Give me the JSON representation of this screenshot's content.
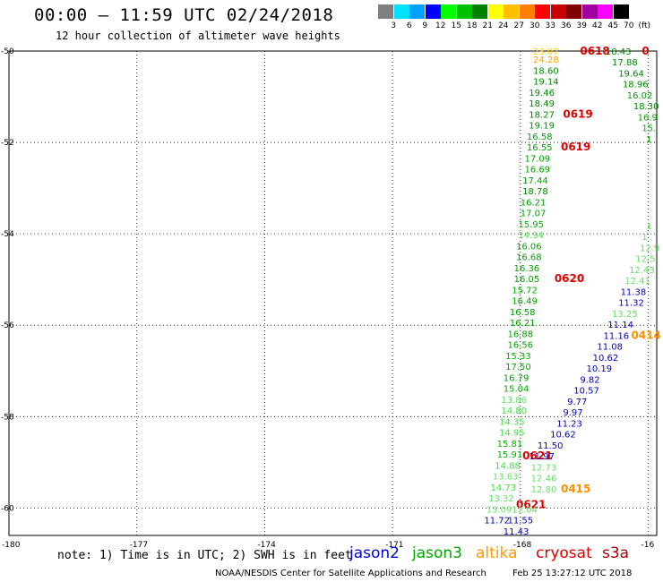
{
  "title": "00:00 – 11:59 UTC 02/24/2018",
  "subtitle": "12 hour collection of altimeter wave heights",
  "legend": {
    "labels": [
      "3",
      "6",
      "9",
      "12",
      "15",
      "18",
      "21",
      "24",
      "27",
      "30",
      "33",
      "36",
      "39",
      "42",
      "45",
      "70",
      "(ft)"
    ],
    "colors": [
      "#808080",
      "#00e0ff",
      "#00a0ff",
      "#0000ff",
      "#00ff00",
      "#00c000",
      "#008000",
      "#ffff00",
      "#ffc000",
      "#ff8000",
      "#ff0000",
      "#c80000",
      "#800000",
      "#a000a0",
      "#ff00ff",
      "#000000"
    ]
  },
  "lat_labels": [
    {
      "lat": -50,
      "label": "-50"
    },
    {
      "lat": -52,
      "label": "-52"
    },
    {
      "lat": -54,
      "label": "-54"
    },
    {
      "lat": -56,
      "label": "-56"
    },
    {
      "lat": -58,
      "label": "-58"
    },
    {
      "lat": -60,
      "label": "-60"
    }
  ],
  "lon_labels": [
    {
      "lon": -180,
      "label": "-180"
    },
    {
      "lon": -177,
      "label": "-177"
    },
    {
      "lon": -174,
      "label": "-174"
    },
    {
      "lon": -171,
      "label": "-171"
    },
    {
      "lon": -168,
      "label": "-168"
    },
    {
      "lon": -165,
      "label": "-16"
    }
  ],
  "observations": [
    {
      "lon": -167.7,
      "lat": -50.0,
      "text": "23.07",
      "color": "#ffd000"
    },
    {
      "lon": -167.7,
      "lat": -50.18,
      "text": "24.28",
      "color": "#ffa000"
    },
    {
      "lon": -166.6,
      "lat": -50.0,
      "text": "0618",
      "color": "#e00000",
      "bold": true
    },
    {
      "lon": -167.7,
      "lat": -50.42,
      "text": "18.60",
      "color": "#008800"
    },
    {
      "lon": -167.7,
      "lat": -50.66,
      "text": "19.14",
      "color": "#008800"
    },
    {
      "lon": -167.8,
      "lat": -50.9,
      "text": "19.46",
      "color": "#008800"
    },
    {
      "lon": -167.8,
      "lat": -51.14,
      "text": "18.49",
      "color": "#008800"
    },
    {
      "lon": -167.8,
      "lat": -51.38,
      "text": "18.27",
      "color": "#008800"
    },
    {
      "lon": -167.8,
      "lat": -51.62,
      "text": "19.19",
      "color": "#008800"
    },
    {
      "lon": -167.85,
      "lat": -51.86,
      "text": "16.58",
      "color": "#00a000"
    },
    {
      "lon": -167.85,
      "lat": -52.1,
      "text": "16.55",
      "color": "#00a000"
    },
    {
      "lon": -167.0,
      "lat": -51.38,
      "text": "0619",
      "color": "#e00000",
      "bold": true
    },
    {
      "lon": -167.05,
      "lat": -52.1,
      "text": "0619",
      "color": "#e00000",
      "bold": true
    },
    {
      "lon": -167.9,
      "lat": -52.34,
      "text": "17.09",
      "color": "#00a000"
    },
    {
      "lon": -167.9,
      "lat": -52.58,
      "text": "16.69",
      "color": "#00a000"
    },
    {
      "lon": -167.95,
      "lat": -52.82,
      "text": "17.44",
      "color": "#00a000"
    },
    {
      "lon": -167.95,
      "lat": -53.06,
      "text": "18.78",
      "color": "#008800"
    },
    {
      "lon": -168.0,
      "lat": -53.3,
      "text": "16.21",
      "color": "#00a000"
    },
    {
      "lon": -168.0,
      "lat": -53.54,
      "text": "17.07",
      "color": "#00a000"
    },
    {
      "lon": -168.05,
      "lat": -53.78,
      "text": "15.95",
      "color": "#00b000"
    },
    {
      "lon": -168.05,
      "lat": -54.02,
      "text": "14.94",
      "color": "#44e044"
    },
    {
      "lon": -168.1,
      "lat": -54.26,
      "text": "16.06",
      "color": "#00a000"
    },
    {
      "lon": -168.1,
      "lat": -54.5,
      "text": "16.68",
      "color": "#00a000"
    },
    {
      "lon": -168.15,
      "lat": -54.74,
      "text": "16.36",
      "color": "#00a000"
    },
    {
      "lon": -168.15,
      "lat": -54.98,
      "text": "16.05",
      "color": "#00a000"
    },
    {
      "lon": -167.2,
      "lat": -54.98,
      "text": "0620",
      "color": "#e00000",
      "bold": true
    },
    {
      "lon": -168.2,
      "lat": -55.22,
      "text": "15.72",
      "color": "#00b000"
    },
    {
      "lon": -168.2,
      "lat": -55.46,
      "text": "16.49",
      "color": "#00a000"
    },
    {
      "lon": -168.25,
      "lat": -55.7,
      "text": "16.58",
      "color": "#00a000"
    },
    {
      "lon": -168.25,
      "lat": -55.94,
      "text": "16.21",
      "color": "#00a000"
    },
    {
      "lon": -168.3,
      "lat": -56.18,
      "text": "16.88",
      "color": "#00a000"
    },
    {
      "lon": -168.3,
      "lat": -56.42,
      "text": "16.56",
      "color": "#00a000"
    },
    {
      "lon": -168.35,
      "lat": -56.66,
      "text": "15.33",
      "color": "#00b000"
    },
    {
      "lon": -168.35,
      "lat": -56.9,
      "text": "17.50",
      "color": "#00a000"
    },
    {
      "lon": -168.4,
      "lat": -57.14,
      "text": "16.79",
      "color": "#00a000"
    },
    {
      "lon": -168.4,
      "lat": -57.38,
      "text": "15.04",
      "color": "#00b000"
    },
    {
      "lon": -168.45,
      "lat": -57.62,
      "text": "13.86",
      "color": "#66e066"
    },
    {
      "lon": -168.45,
      "lat": -57.86,
      "text": "14.80",
      "color": "#44e044"
    },
    {
      "lon": -168.5,
      "lat": -58.1,
      "text": "14.35",
      "color": "#44e044"
    },
    {
      "lon": -168.5,
      "lat": -58.34,
      "text": "14.95",
      "color": "#44e044"
    },
    {
      "lon": -168.55,
      "lat": -58.58,
      "text": "15.81",
      "color": "#00b000"
    },
    {
      "lon": -168.55,
      "lat": -58.82,
      "text": "15.91",
      "color": "#00b000"
    },
    {
      "lon": -168.6,
      "lat": -59.06,
      "text": "14.88",
      "color": "#44e044"
    },
    {
      "lon": -168.65,
      "lat": -59.3,
      "text": "13.63",
      "color": "#66e066"
    },
    {
      "lon": -168.7,
      "lat": -59.54,
      "text": "14.73",
      "color": "#44e044"
    },
    {
      "lon": -168.75,
      "lat": -59.78,
      "text": "13.32",
      "color": "#66e066"
    },
    {
      "lon": -168.8,
      "lat": -60.02,
      "text": "13.09",
      "color": "#66e066"
    },
    {
      "lon": -168.85,
      "lat": -60.26,
      "text": "11.72",
      "color": "#0000c0"
    },
    {
      "lon": -168.3,
      "lat": -60.26,
      "text": "11.55",
      "color": "#0000c0"
    },
    {
      "lon": -168.4,
      "lat": -60.5,
      "text": "11.43",
      "color": "#0000c0"
    },
    {
      "lon": -167.95,
      "lat": -58.86,
      "text": "0621",
      "color": "#e00000",
      "bold": true
    },
    {
      "lon": -168.1,
      "lat": -59.92,
      "text": "0621",
      "color": "#e00000",
      "bold": true
    },
    {
      "lon": -167.8,
      "lat": -58.86,
      "text": "11.97",
      "color": "#0000c0"
    },
    {
      "lon": -167.75,
      "lat": -59.1,
      "text": "12.73",
      "color": "#66e066"
    },
    {
      "lon": -167.75,
      "lat": -59.34,
      "text": "12.46",
      "color": "#66e066"
    },
    {
      "lon": -167.75,
      "lat": -59.58,
      "text": "12.80",
      "color": "#66e066"
    },
    {
      "lon": -168.2,
      "lat": -60.02,
      "text": "12.04",
      "color": "#66e066"
    },
    {
      "lon": -167.05,
      "lat": -59.58,
      "text": "0415",
      "color": "#ff9000",
      "bold": true
    },
    {
      "lon": -167.6,
      "lat": -58.62,
      "text": "11.50",
      "color": "#0000c0"
    },
    {
      "lon": -167.3,
      "lat": -58.38,
      "text": "10.62",
      "color": "#0000c0"
    },
    {
      "lon": -167.15,
      "lat": -58.14,
      "text": "11.23",
      "color": "#0000c0"
    },
    {
      "lon": -167.0,
      "lat": -57.9,
      "text": "9.97",
      "color": "#0000c0"
    },
    {
      "lon": -166.9,
      "lat": -57.66,
      "text": "9.77",
      "color": "#0000c0"
    },
    {
      "lon": -166.75,
      "lat": -57.42,
      "text": "10.57",
      "color": "#0000c0"
    },
    {
      "lon": -166.6,
      "lat": -57.18,
      "text": "9.82",
      "color": "#0000c0"
    },
    {
      "lon": -166.45,
      "lat": -56.94,
      "text": "10.19",
      "color": "#0000c0"
    },
    {
      "lon": -166.3,
      "lat": -56.7,
      "text": "10.62",
      "color": "#0000c0"
    },
    {
      "lon": -166.2,
      "lat": -56.46,
      "text": "11.08",
      "color": "#0000c0"
    },
    {
      "lon": -166.05,
      "lat": -56.22,
      "text": "11.16",
      "color": "#0000c0"
    },
    {
      "lon": -165.95,
      "lat": -55.98,
      "text": "11.14",
      "color": "#0000c0"
    },
    {
      "lon": -165.85,
      "lat": -55.74,
      "text": "13.25",
      "color": "#66e066"
    },
    {
      "lon": -165.7,
      "lat": -55.5,
      "text": "11.32",
      "color": "#0000c0"
    },
    {
      "lon": -165.65,
      "lat": -55.26,
      "text": "11.38",
      "color": "#0000c0"
    },
    {
      "lon": -165.55,
      "lat": -55.02,
      "text": "12.41",
      "color": "#66e066"
    },
    {
      "lon": -165.4,
      "lat": -56.22,
      "text": "0414",
      "color": "#ff9000",
      "bold": true
    },
    {
      "lon": -165.45,
      "lat": -54.78,
      "text": "12.43",
      "color": "#66e066"
    },
    {
      "lon": -165.3,
      "lat": -54.54,
      "text": "12.5",
      "color": "#66e066"
    },
    {
      "lon": -165.2,
      "lat": -54.3,
      "text": "12.9",
      "color": "#66e066"
    },
    {
      "lon": -165.15,
      "lat": -54.06,
      "text": "1",
      "color": "#66e066"
    },
    {
      "lon": -165.05,
      "lat": -53.82,
      "text": "1",
      "color": "#66e066"
    },
    {
      "lon": -166.0,
      "lat": -50.0,
      "text": "18.43",
      "color": "#008800"
    },
    {
      "lon": -165.85,
      "lat": -50.24,
      "text": "17.88",
      "color": "#008800"
    },
    {
      "lon": -165.7,
      "lat": -50.48,
      "text": "19.64",
      "color": "#008800"
    },
    {
      "lon": -165.6,
      "lat": -50.72,
      "text": "18.96",
      "color": "#008800"
    },
    {
      "lon": -165.5,
      "lat": -50.96,
      "text": "16.02",
      "color": "#00a000"
    },
    {
      "lon": -165.35,
      "lat": -51.2,
      "text": "18.30",
      "color": "#008800"
    },
    {
      "lon": -165.25,
      "lat": -51.44,
      "text": "16.9",
      "color": "#00a000"
    },
    {
      "lon": -165.15,
      "lat": -51.68,
      "text": "15.",
      "color": "#00b000"
    },
    {
      "lon": -165.05,
      "lat": -51.92,
      "text": "1",
      "color": "#00b000"
    },
    {
      "lon": -165.15,
      "lat": -50.0,
      "text": "0",
      "color": "#e00000",
      "bold": true
    }
  ],
  "note": "note: 1) Time is in UTC; 2) SWH is in feet",
  "satellites": [
    {
      "name": "jason2",
      "color": "#0000dd"
    },
    {
      "name": "jason3",
      "color": "#00aa00"
    },
    {
      "name": "altika",
      "color": "#ff9900"
    },
    {
      "name": "cryosat",
      "color": "#e00000"
    },
    {
      "name": "s3a",
      "color": "#aa0000"
    }
  ],
  "credit": "NOAA/NESDIS Center for Satellite Applications and Research",
  "timestamp": "Feb 25 13:27:12 UTC 2018"
}
